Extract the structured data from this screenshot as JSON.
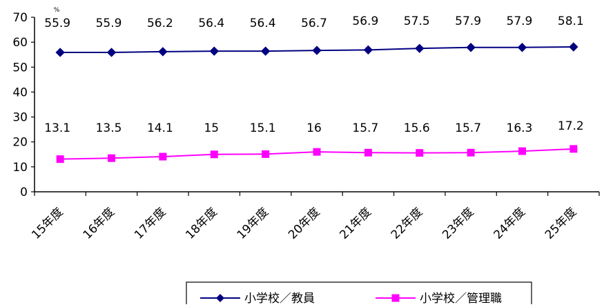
{
  "chart_data": {
    "type": "line",
    "unit_label": "%",
    "categories": [
      "15年度",
      "16年度",
      "17年度",
      "18年度",
      "19年度",
      "20年度",
      "21年度",
      "22年度",
      "23年度",
      "24年度",
      "25年度"
    ],
    "series": [
      {
        "name": "小学校／教員",
        "color": "#000080",
        "marker": "diamond",
        "values": [
          55.9,
          55.9,
          56.2,
          56.4,
          56.4,
          56.7,
          56.9,
          57.5,
          57.9,
          57.9,
          58.1
        ],
        "labels": [
          "55.9",
          "55.9",
          "56.2",
          "56.4",
          "56.4",
          "56.7",
          "56.9",
          "57.5",
          "57.9",
          "57.9",
          "58.1"
        ]
      },
      {
        "name": "小学校／管理職",
        "color": "#FF00FF",
        "marker": "square",
        "values": [
          13.1,
          13.5,
          14.1,
          15,
          15.1,
          16,
          15.7,
          15.6,
          15.7,
          16.3,
          17.2
        ],
        "labels": [
          "13.1",
          "13.5",
          "14.1",
          "15",
          "15.1",
          "16",
          "15.7",
          "15.6",
          "15.7",
          "16.3",
          "17.2"
        ]
      }
    ],
    "ylim": [
      0,
      70
    ],
    "yticks": [
      "0",
      "10",
      "20",
      "30",
      "40",
      "50",
      "60",
      "70"
    ],
    "grid": false,
    "legend_position": "bottom"
  }
}
